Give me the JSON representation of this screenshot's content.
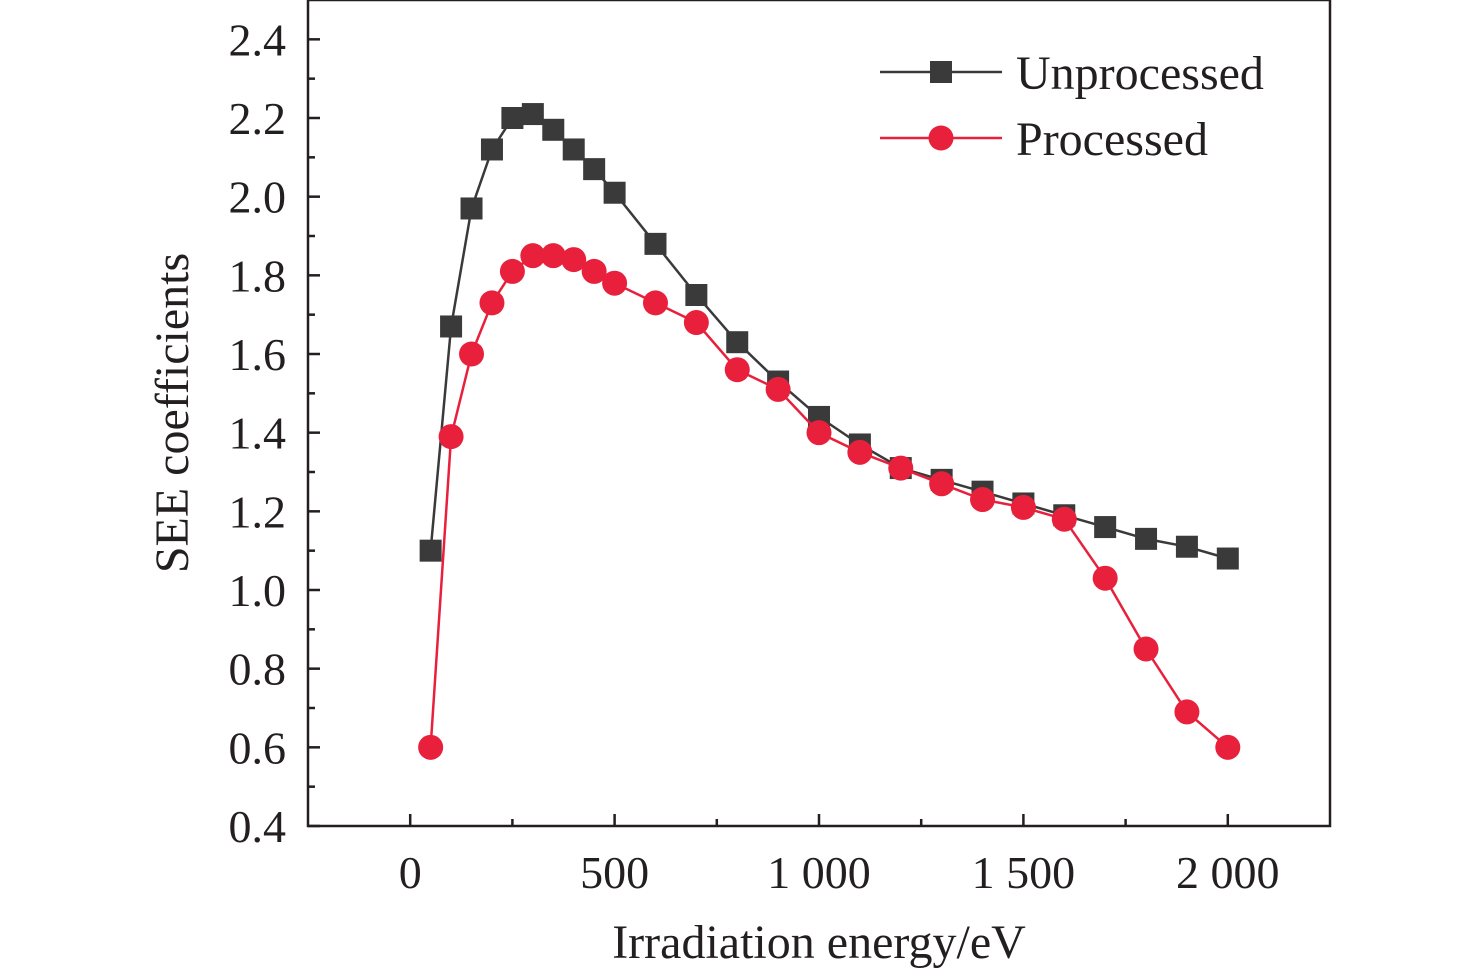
{
  "chart_data": {
    "type": "line",
    "title": "",
    "xlabel": "Irradiation energy/eV",
    "ylabel": "SEE coefficients",
    "xlim": [
      -250,
      2250
    ],
    "ylim": [
      0.4,
      2.5
    ],
    "x_ticks": [
      0,
      500,
      1000,
      1500,
      2000
    ],
    "x_tick_labels": [
      "0",
      "500",
      "1 000",
      "1 500",
      "2 000"
    ],
    "y_ticks": [
      0.4,
      0.6,
      0.8,
      1.0,
      1.2,
      1.4,
      1.6,
      1.8,
      2.0,
      2.2,
      2.4
    ],
    "y_tick_labels": [
      "0.4",
      "0.6",
      "0.8",
      "1.0",
      "1.2",
      "1.4",
      "1.6",
      "1.8",
      "2.0",
      "2.2",
      "2.4"
    ],
    "grid": false,
    "legend_position": "top-right",
    "series": [
      {
        "name": "Unprocessed",
        "color": "#3a3a3a",
        "marker": "square",
        "x": [
          50,
          100,
          150,
          200,
          250,
          300,
          350,
          400,
          450,
          500,
          600,
          700,
          800,
          900,
          1000,
          1100,
          1200,
          1300,
          1400,
          1500,
          1600,
          1700,
          1800,
          1900,
          2000
        ],
        "y": [
          1.1,
          1.67,
          1.97,
          2.12,
          2.2,
          2.21,
          2.17,
          2.12,
          2.07,
          2.01,
          1.88,
          1.75,
          1.63,
          1.53,
          1.44,
          1.37,
          1.31,
          1.28,
          1.25,
          1.22,
          1.19,
          1.16,
          1.13,
          1.11,
          1.08
        ]
      },
      {
        "name": "Processed",
        "color": "#e8203c",
        "marker": "circle",
        "x": [
          50,
          100,
          150,
          200,
          250,
          300,
          350,
          400,
          450,
          500,
          600,
          700,
          800,
          900,
          1000,
          1100,
          1200,
          1300,
          1400,
          1500,
          1600,
          1700,
          1800,
          1900,
          2000
        ],
        "y": [
          0.6,
          1.39,
          1.6,
          1.73,
          1.81,
          1.85,
          1.85,
          1.84,
          1.81,
          1.78,
          1.73,
          1.68,
          1.56,
          1.51,
          1.4,
          1.35,
          1.31,
          1.27,
          1.23,
          1.21,
          1.18,
          1.03,
          0.85,
          0.69,
          0.6
        ]
      }
    ]
  }
}
